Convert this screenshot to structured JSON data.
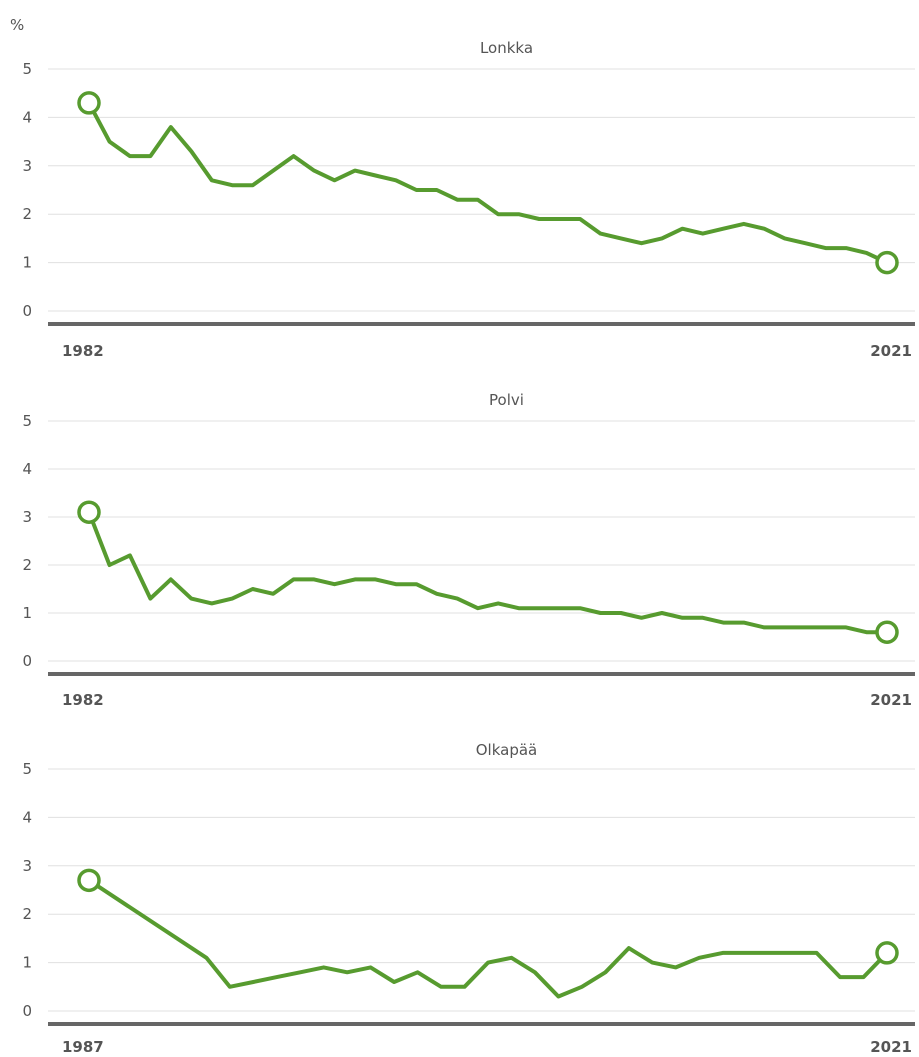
{
  "y_unit": "%",
  "colors": {
    "line": "#579b2f",
    "grid": "#e0e0e0",
    "axis": "#666666",
    "text": "#555555"
  },
  "chart_data": [
    {
      "type": "line",
      "title": "Lonkka",
      "x_start_label": "1982",
      "x_end_label": "2021",
      "ylim": [
        0,
        5
      ],
      "y_ticks": [
        0,
        1,
        2,
        3,
        4,
        5
      ],
      "grid": true,
      "x": [
        1982,
        1983,
        1984,
        1985,
        1986,
        1987,
        1988,
        1989,
        1990,
        1991,
        1992,
        1993,
        1994,
        1995,
        1996,
        1997,
        1998,
        1999,
        2000,
        2001,
        2002,
        2003,
        2004,
        2005,
        2006,
        2007,
        2008,
        2009,
        2010,
        2011,
        2012,
        2013,
        2014,
        2015,
        2016,
        2017,
        2018,
        2019,
        2020,
        2021
      ],
      "values": [
        4.3,
        3.5,
        3.2,
        3.2,
        3.8,
        3.3,
        2.7,
        2.6,
        2.6,
        2.9,
        3.2,
        2.9,
        2.7,
        2.9,
        2.8,
        2.7,
        2.5,
        2.5,
        2.3,
        2.3,
        2.0,
        2.0,
        1.9,
        1.9,
        1.9,
        1.6,
        1.5,
        1.4,
        1.5,
        1.7,
        1.6,
        1.7,
        1.8,
        1.7,
        1.5,
        1.4,
        1.3,
        1.3,
        1.2,
        1.0
      ]
    },
    {
      "type": "line",
      "title": "Polvi",
      "x_start_label": "1982",
      "x_end_label": "2021",
      "ylim": [
        0,
        5
      ],
      "y_ticks": [
        0,
        1,
        2,
        3,
        4,
        5
      ],
      "grid": true,
      "x": [
        1982,
        1983,
        1984,
        1985,
        1986,
        1987,
        1988,
        1989,
        1990,
        1991,
        1992,
        1993,
        1994,
        1995,
        1996,
        1997,
        1998,
        1999,
        2000,
        2001,
        2002,
        2003,
        2004,
        2005,
        2006,
        2007,
        2008,
        2009,
        2010,
        2011,
        2012,
        2013,
        2014,
        2015,
        2016,
        2017,
        2018,
        2019,
        2020,
        2021
      ],
      "values": [
        3.1,
        2.0,
        2.2,
        1.3,
        1.7,
        1.3,
        1.2,
        1.3,
        1.5,
        1.4,
        1.7,
        1.7,
        1.6,
        1.7,
        1.7,
        1.6,
        1.6,
        1.4,
        1.3,
        1.1,
        1.2,
        1.1,
        1.1,
        1.1,
        1.1,
        1.0,
        1.0,
        0.9,
        1.0,
        0.9,
        0.9,
        0.8,
        0.8,
        0.7,
        0.7,
        0.7,
        0.7,
        0.7,
        0.6,
        0.6
      ]
    },
    {
      "type": "line",
      "title": "Olkapää",
      "x_start_label": "1987",
      "x_end_label": "2021",
      "ylim": [
        0,
        5
      ],
      "y_ticks": [
        0,
        1,
        2,
        3,
        4,
        5
      ],
      "grid": true,
      "x": [
        1987,
        1992,
        1993,
        1994,
        1995,
        1996,
        1997,
        1998,
        1999,
        2000,
        2001,
        2002,
        2003,
        2004,
        2005,
        2006,
        2007,
        2008,
        2009,
        2010,
        2011,
        2012,
        2013,
        2014,
        2015,
        2016,
        2017,
        2018,
        2019,
        2020,
        2021
      ],
      "values": [
        2.7,
        1.1,
        0.5,
        0.6,
        0.7,
        0.8,
        0.9,
        0.8,
        0.9,
        0.6,
        0.8,
        0.5,
        0.5,
        1.0,
        1.1,
        0.8,
        0.3,
        0.5,
        0.8,
        1.3,
        1.0,
        0.9,
        1.1,
        1.2,
        1.2,
        1.2,
        1.2,
        1.2,
        0.7,
        0.7,
        1.2
      ]
    }
  ]
}
